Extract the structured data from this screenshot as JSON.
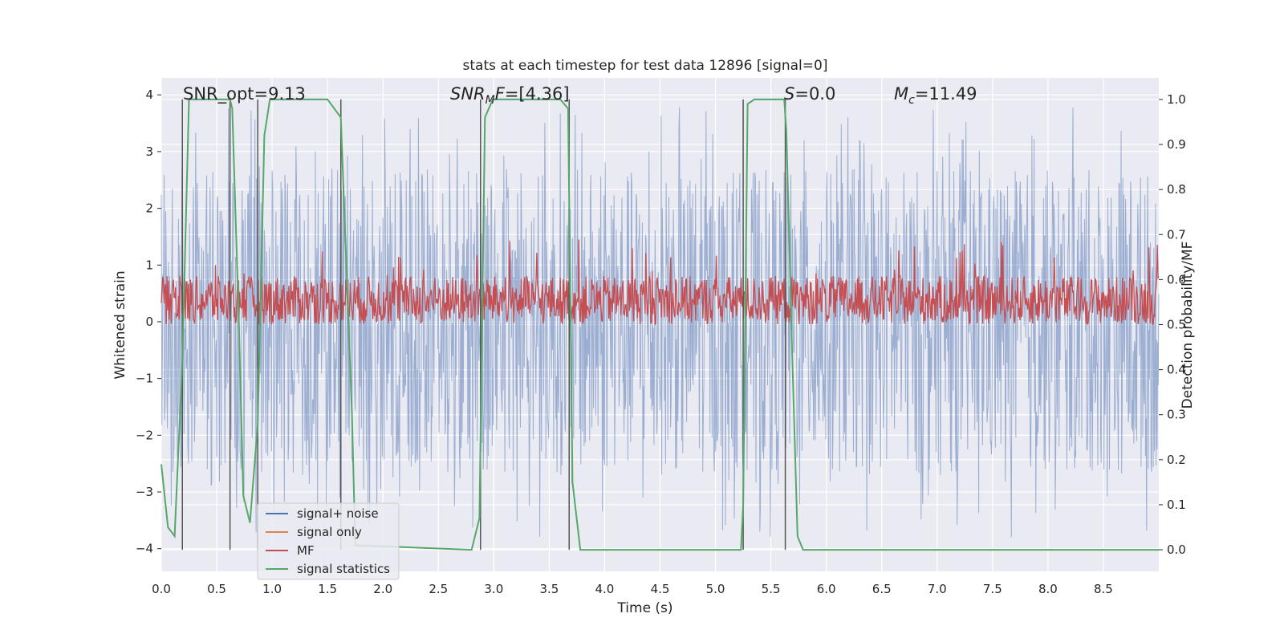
{
  "chart_data": {
    "type": "line",
    "title": "stats at each timestep for test data 12896 [signal=0]",
    "xlabel": "Time (s)",
    "ylabel": "Whitened strain",
    "ylabel_right": "Detection probability/MF",
    "xlim": [
      0,
      9.0
    ],
    "ylim": [
      -4.4,
      4.3
    ],
    "ylim_right": [
      -0.048,
      1.048
    ],
    "x_ticks": [
      0.0,
      0.5,
      1.0,
      1.5,
      2.0,
      2.5,
      3.0,
      3.5,
      4.0,
      4.5,
      5.0,
      5.5,
      6.0,
      6.5,
      7.0,
      7.5,
      8.0,
      8.5
    ],
    "x_tick_labels": [
      "0.0",
      "0.5",
      "1.0",
      "1.5",
      "2.0",
      "2.5",
      "3.0",
      "3.5",
      "4.0",
      "4.5",
      "5.0",
      "5.5",
      "6.0",
      "6.5",
      "7.0",
      "7.5",
      "8.0",
      "8.5"
    ],
    "y_ticks": [
      4,
      3,
      2,
      1,
      0,
      -1,
      -2,
      -3,
      -4
    ],
    "y_tick_labels": [
      "4",
      "3",
      "2",
      "1",
      "0",
      "−1",
      "−2",
      "−3",
      "−4"
    ],
    "y_ticks_right": [
      1.0,
      0.9,
      0.8,
      0.7,
      0.6,
      0.5,
      0.4,
      0.3,
      0.2,
      0.1,
      0.0
    ],
    "y_tick_labels_right": [
      "1.0",
      "0.9",
      "0.8",
      "0.7",
      "0.6",
      "0.5",
      "0.4",
      "0.3",
      "0.2",
      "0.1",
      "0.0"
    ],
    "series": [
      {
        "name": "signal+ noise",
        "color": "#4c72b0",
        "axis": "left",
        "style": "dense-noise",
        "noise_scale": 2.0,
        "n_samples": 1800
      },
      {
        "name": "signal only",
        "color": "#dd8452",
        "axis": "left",
        "values": []
      },
      {
        "name": "MF",
        "color": "#c44e52",
        "axis": "right",
        "style": "dense-noise",
        "baseline": 0.5,
        "range": [
          0.5,
          0.62
        ]
      },
      {
        "name": "signal statistics",
        "color": "#55a868",
        "axis": "right",
        "x": [
          0.0,
          0.06,
          0.12,
          0.19,
          0.25,
          0.62,
          0.64,
          0.7,
          0.74,
          0.8,
          0.87,
          0.93,
          0.98,
          1.5,
          1.62,
          1.72,
          1.75,
          2.8,
          2.87,
          2.92,
          2.99,
          3.6,
          3.67,
          3.71,
          3.78,
          3.87,
          5.23,
          5.25,
          5.29,
          5.35,
          5.62,
          5.64,
          5.69,
          5.74,
          5.79,
          9.0
        ],
        "y": [
          0.19,
          0.05,
          0.03,
          0.42,
          1.0,
          1.0,
          0.98,
          0.5,
          0.12,
          0.06,
          0.28,
          0.92,
          1.0,
          1.0,
          0.96,
          0.3,
          0.01,
          0.0,
          0.07,
          0.96,
          1.0,
          1.0,
          0.98,
          0.15,
          0.0,
          0.0,
          0.0,
          0.1,
          0.99,
          1.0,
          1.0,
          0.93,
          0.45,
          0.03,
          0.0,
          0.0
        ]
      }
    ],
    "vlines": [
      0.19,
      0.62,
      0.87,
      1.62,
      2.88,
      3.68,
      5.25,
      5.63
    ],
    "vline_color": "#555555",
    "annotations": [
      {
        "id": "snr-opt",
        "text": "SNR_opt=9.13"
      },
      {
        "id": "snr-mf",
        "text": "=[4.36]",
        "math": "SNR",
        "sub": "M",
        "tail": "F"
      },
      {
        "id": "s-stat",
        "text": "=0.0",
        "math": "S"
      },
      {
        "id": "mc",
        "text": "=11.49",
        "math": "M",
        "sub": "c"
      }
    ],
    "legend": {
      "position": "lower-left",
      "entries": [
        {
          "label": "signal+ noise",
          "color": "#4c72b0"
        },
        {
          "label": "signal only",
          "color": "#dd8452"
        },
        {
          "label": "MF",
          "color": "#c44e52"
        },
        {
          "label": "signal statistics",
          "color": "#55a868"
        }
      ]
    },
    "background_color": "#eaeaf2",
    "grid": true
  }
}
